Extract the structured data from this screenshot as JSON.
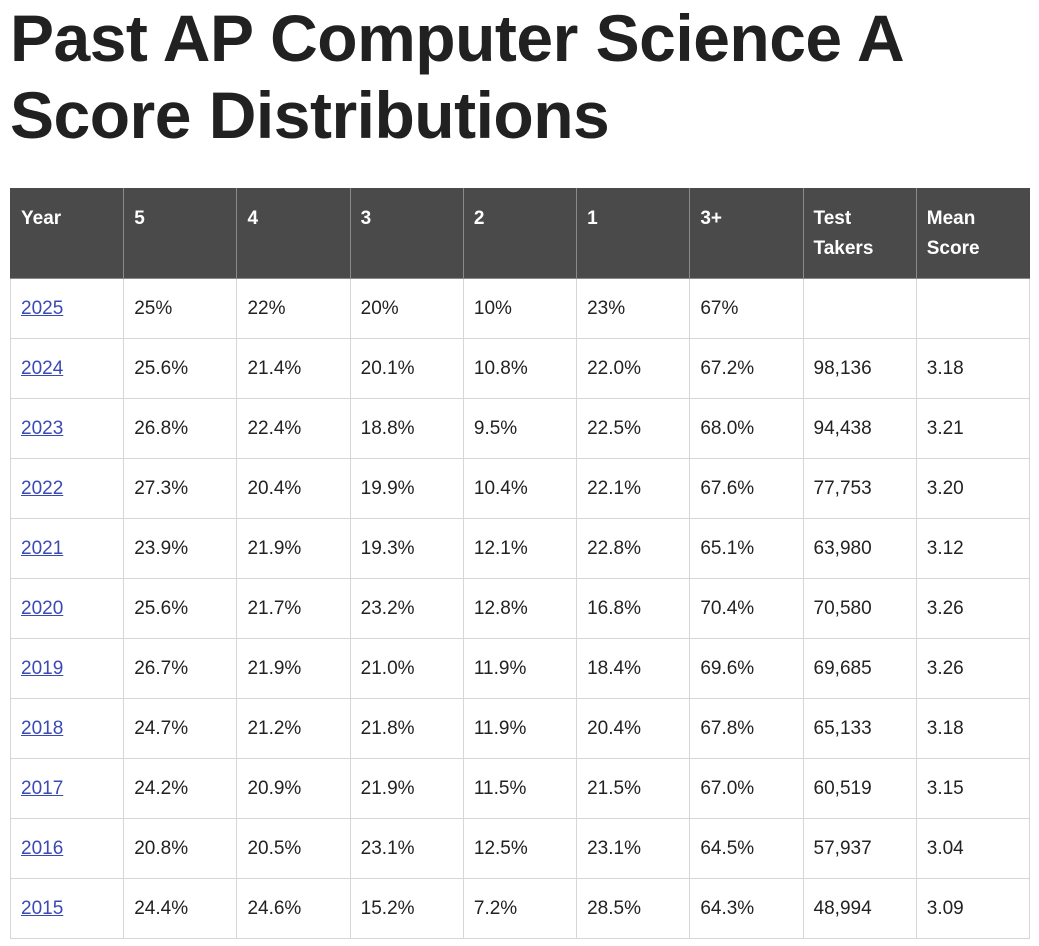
{
  "page": {
    "title": "Past AP Computer Science A Score Distributions"
  },
  "table": {
    "headers": [
      "Year",
      "5",
      "4",
      "3",
      "2",
      "1",
      "3+",
      "Test Takers",
      "Mean Score"
    ],
    "rows": [
      [
        "2025",
        "25%",
        "22%",
        "20%",
        "10%",
        "23%",
        "67%",
        "",
        ""
      ],
      [
        "2024",
        "25.6%",
        "21.4%",
        "20.1%",
        "10.8%",
        "22.0%",
        "67.2%",
        "98,136",
        "3.18"
      ],
      [
        "2023",
        "26.8%",
        "22.4%",
        "18.8%",
        "9.5%",
        "22.5%",
        "68.0%",
        "94,438",
        "3.21"
      ],
      [
        "2022",
        "27.3%",
        "20.4%",
        "19.9%",
        "10.4%",
        "22.1%",
        "67.6%",
        "77,753",
        "3.20"
      ],
      [
        "2021",
        "23.9%",
        "21.9%",
        "19.3%",
        "12.1%",
        "22.8%",
        "65.1%",
        "63,980",
        "3.12"
      ],
      [
        "2020",
        "25.6%",
        "21.7%",
        "23.2%",
        "12.8%",
        "16.8%",
        "70.4%",
        "70,580",
        "3.26"
      ],
      [
        "2019",
        "26.7%",
        "21.9%",
        "21.0%",
        "11.9%",
        "18.4%",
        "69.6%",
        "69,685",
        "3.26"
      ],
      [
        "2018",
        "24.7%",
        "21.2%",
        "21.8%",
        "11.9%",
        "20.4%",
        "67.8%",
        "65,133",
        "3.18"
      ],
      [
        "2017",
        "24.2%",
        "20.9%",
        "21.9%",
        "11.5%",
        "21.5%",
        "67.0%",
        "60,519",
        "3.15"
      ],
      [
        "2016",
        "20.8%",
        "20.5%",
        "23.1%",
        "12.5%",
        "23.1%",
        "64.5%",
        "57,937",
        "3.04"
      ],
      [
        "2015",
        "24.4%",
        "24.6%",
        "15.2%",
        "7.2%",
        "28.5%",
        "64.3%",
        "48,994",
        "3.09"
      ]
    ]
  },
  "colors": {
    "header_bg": "#4a4a4a",
    "link": "#3b49b5",
    "border": "#d6d6d6"
  }
}
